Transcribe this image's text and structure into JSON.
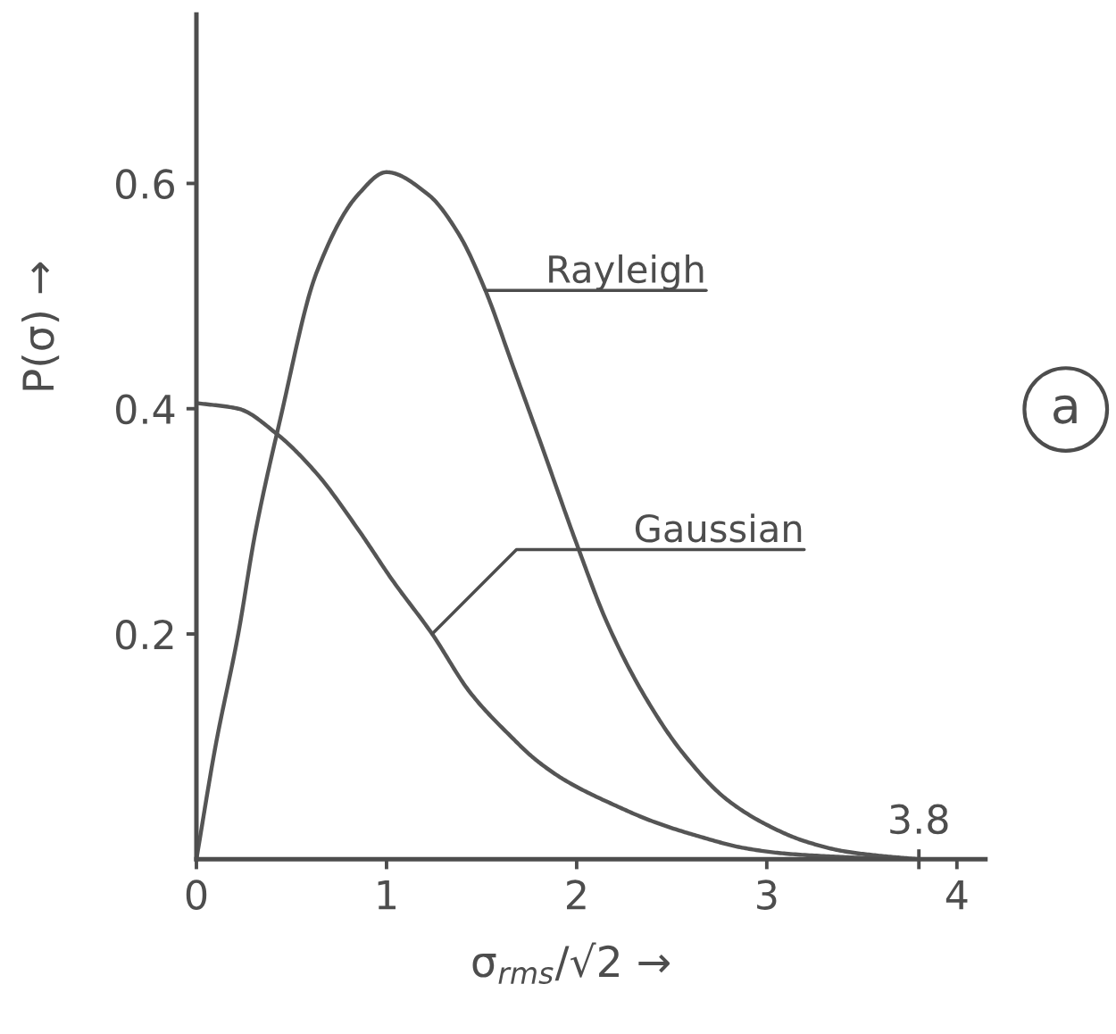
{
  "chart_data": {
    "type": "line",
    "xlabel": "σ$_{rms}$/√2 →",
    "ylabel": "P(σ) →",
    "xlim": [
      0,
      4.15
    ],
    "ylim": [
      0,
      0.75
    ],
    "xticks": [
      0,
      1,
      2,
      3,
      {
        "value": 3.8,
        "label": null
      },
      4
    ],
    "yticks": [
      0.2,
      0.4,
      0.6
    ],
    "line_style": "solid",
    "series": [
      {
        "color": "#555555",
        "x": [
          0,
          0.1,
          0.22,
          0.31,
          0.44,
          0.63,
          0.85,
          1.0,
          1.22,
          1.38,
          1.52,
          1.66,
          1.81,
          2.0,
          2.16,
          2.35,
          2.56,
          2.79,
          3.03,
          3.2,
          3.41,
          3.6,
          3.8
        ],
        "values": [
          0,
          0.1,
          0.2,
          0.29,
          0.39,
          0.52,
          0.59,
          0.61,
          0.59,
          0.555,
          0.505,
          0.44,
          0.37,
          0.28,
          0.21,
          0.147,
          0.094,
          0.053,
          0.028,
          0.016,
          0.007,
          0.003,
          0
        ]
      },
      {
        "color": "#555555",
        "x": [
          0,
          0.22,
          0.42,
          0.63,
          0.85,
          1.03,
          1.24,
          1.44,
          1.66,
          1.78,
          1.94,
          2.2,
          2.41,
          2.65,
          2.88,
          3.1,
          3.4,
          3.7
        ],
        "values": [
          0.405,
          0.4,
          0.378,
          0.343,
          0.293,
          0.248,
          0.2,
          0.148,
          0.108,
          0.089,
          0.07,
          0.048,
          0.033,
          0.02,
          0.01,
          0.005,
          0.002,
          0
        ]
      }
    ],
    "annotations": [
      {
        "text": "Rayleigh",
        "x": 1.52,
        "y": 0.505
      },
      {
        "text": "Gaussian",
        "x": 1.24,
        "y": 0.2
      },
      {
        "text": "3.8",
        "x": 3.8,
        "y": 0
      },
      "a"
    ]
  }
}
